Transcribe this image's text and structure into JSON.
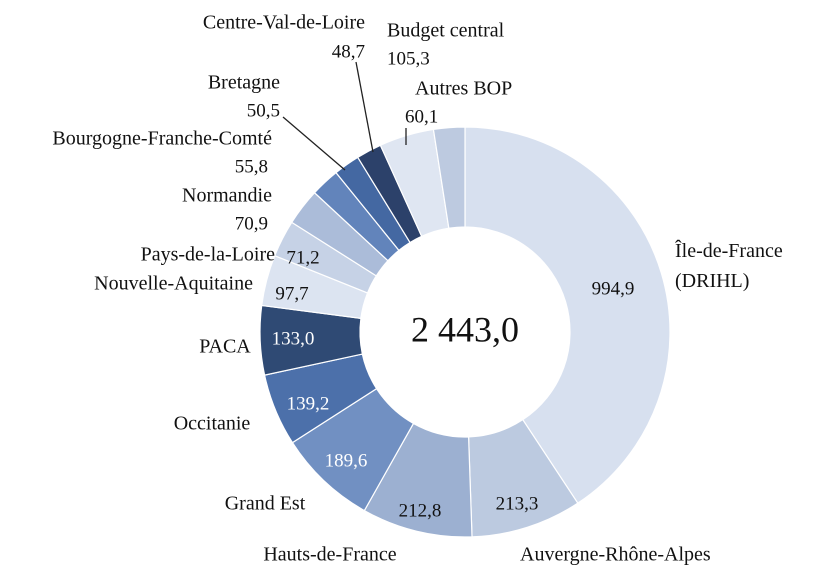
{
  "chart_data": {
    "type": "pie",
    "categories": [
      "Île-de-France (DRIHL)",
      "Auvergne-Rhône-Alpes",
      "Hauts-de-France",
      "Grand Est",
      "Occitanie",
      "PACA",
      "Nouvelle-Aquitaine",
      "Pays-de-la-Loire",
      "Normandie",
      "Bourgogne-Franche-Comté",
      "Bretagne",
      "Centre-Val-de-Loire",
      "Budget central",
      "Autres BOP"
    ],
    "values": [
      994.9,
      213.3,
      212.8,
      189.6,
      139.2,
      133.0,
      97.7,
      71.2,
      70.9,
      55.8,
      50.5,
      48.7,
      105.3,
      60.1
    ],
    "value_labels": [
      "994,9",
      "213,3",
      "212,8",
      "189,6",
      "139,2",
      "133,0",
      "97,7",
      "71,2",
      "70,9",
      "55,8",
      "50,5",
      "48,7",
      "105,3",
      "60,1"
    ],
    "colors": [
      "#d7e0ef",
      "#bccae0",
      "#9cb0d1",
      "#7190c2",
      "#4c70aa",
      "#2f4a74",
      "#dce4f1",
      "#c6d2e6",
      "#abbcd9",
      "#6284bb",
      "#4468a2",
      "#2c416a",
      "#dfe6f2",
      "#bdcae0"
    ],
    "donut": true,
    "center_label": "2 443,0"
  }
}
